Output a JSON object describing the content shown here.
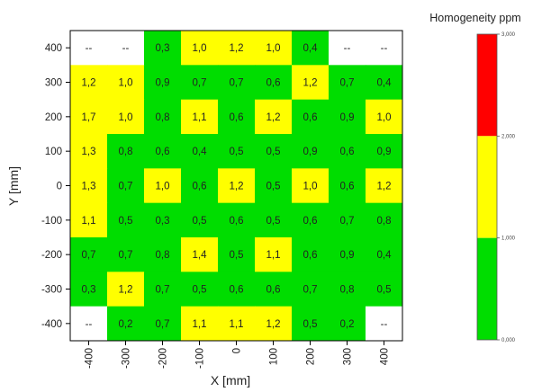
{
  "chart_data": {
    "type": "heatmap",
    "xlabel": "X [mm]",
    "ylabel": "Y [mm]",
    "x_ticks": [
      "-400",
      "-300",
      "-200",
      "-100",
      "0",
      "100",
      "200",
      "300",
      "400"
    ],
    "y_ticks": [
      "400",
      "300",
      "200",
      "100",
      "0",
      "-100",
      "-200",
      "-300",
      "-400"
    ],
    "x": [
      -400,
      -300,
      -200,
      -100,
      0,
      100,
      200,
      300,
      400
    ],
    "y": [
      400,
      300,
      200,
      100,
      0,
      -100,
      -200,
      -300,
      -400
    ],
    "values": [
      [
        "--",
        "--",
        "0,3",
        "1,0",
        "1,2",
        "1,0",
        "0,4",
        "--",
        "--"
      ],
      [
        "1,2",
        "1,0",
        "0,9",
        "0,7",
        "0,7",
        "0,6",
        "1,2",
        "0,7",
        "0,4"
      ],
      [
        "1,7",
        "1,0",
        "0,8",
        "1,1",
        "0,6",
        "1,2",
        "0,6",
        "0,9",
        "1,0"
      ],
      [
        "1,3",
        "0,8",
        "0,6",
        "0,4",
        "0,5",
        "0,5",
        "0,9",
        "0,6",
        "0,9"
      ],
      [
        "1,3",
        "0,7",
        "1,0",
        "0,6",
        "1,2",
        "0,5",
        "1,0",
        "0,6",
        "1,2"
      ],
      [
        "1,1",
        "0,5",
        "0,3",
        "0,5",
        "0,6",
        "0,5",
        "0,6",
        "0,7",
        "0,8"
      ],
      [
        "0,7",
        "0,7",
        "0,8",
        "1,4",
        "0,5",
        "1,1",
        "0,6",
        "0,9",
        "0,4"
      ],
      [
        "0,3",
        "1,2",
        "0,7",
        "0,5",
        "0,6",
        "0,6",
        "0,7",
        "0,8",
        "0,5"
      ],
      [
        "--",
        "0,2",
        "0,7",
        "1,1",
        "1,1",
        "1,2",
        "0,5",
        "0,2",
        "--"
      ]
    ],
    "colors": {
      "low": "#00dd00",
      "mid": "#ffff00",
      "high": "#ff0000",
      "empty": "#ffffff"
    },
    "cell_color_class": [
      [
        "e",
        "e",
        "g",
        "y",
        "y",
        "y",
        "g",
        "e",
        "e"
      ],
      [
        "y",
        "y",
        "g",
        "g",
        "g",
        "g",
        "y",
        "g",
        "g"
      ],
      [
        "y",
        "y",
        "g",
        "y",
        "g",
        "y",
        "g",
        "g",
        "y"
      ],
      [
        "y",
        "g",
        "g",
        "g",
        "g",
        "g",
        "g",
        "g",
        "g"
      ],
      [
        "y",
        "g",
        "y",
        "g",
        "y",
        "g",
        "y",
        "g",
        "y"
      ],
      [
        "y",
        "g",
        "g",
        "g",
        "g",
        "g",
        "g",
        "g",
        "g"
      ],
      [
        "g",
        "g",
        "g",
        "y",
        "g",
        "y",
        "g",
        "g",
        "g"
      ],
      [
        "g",
        "y",
        "g",
        "g",
        "g",
        "g",
        "g",
        "g",
        "g"
      ],
      [
        "e",
        "g",
        "g",
        "y",
        "y",
        "y",
        "g",
        "g",
        "e"
      ]
    ],
    "legend": {
      "title": "Homogeneity ppm",
      "ticks": [
        "3,000",
        "2,000",
        "1,000",
        "0,000"
      ],
      "levels": [
        3,
        2,
        1,
        0
      ],
      "bands": [
        {
          "from": 2,
          "to": 3,
          "color": "#ff0000"
        },
        {
          "from": 1,
          "to": 2,
          "color": "#ffff00"
        },
        {
          "from": 0,
          "to": 1,
          "color": "#00dd00"
        }
      ]
    }
  }
}
